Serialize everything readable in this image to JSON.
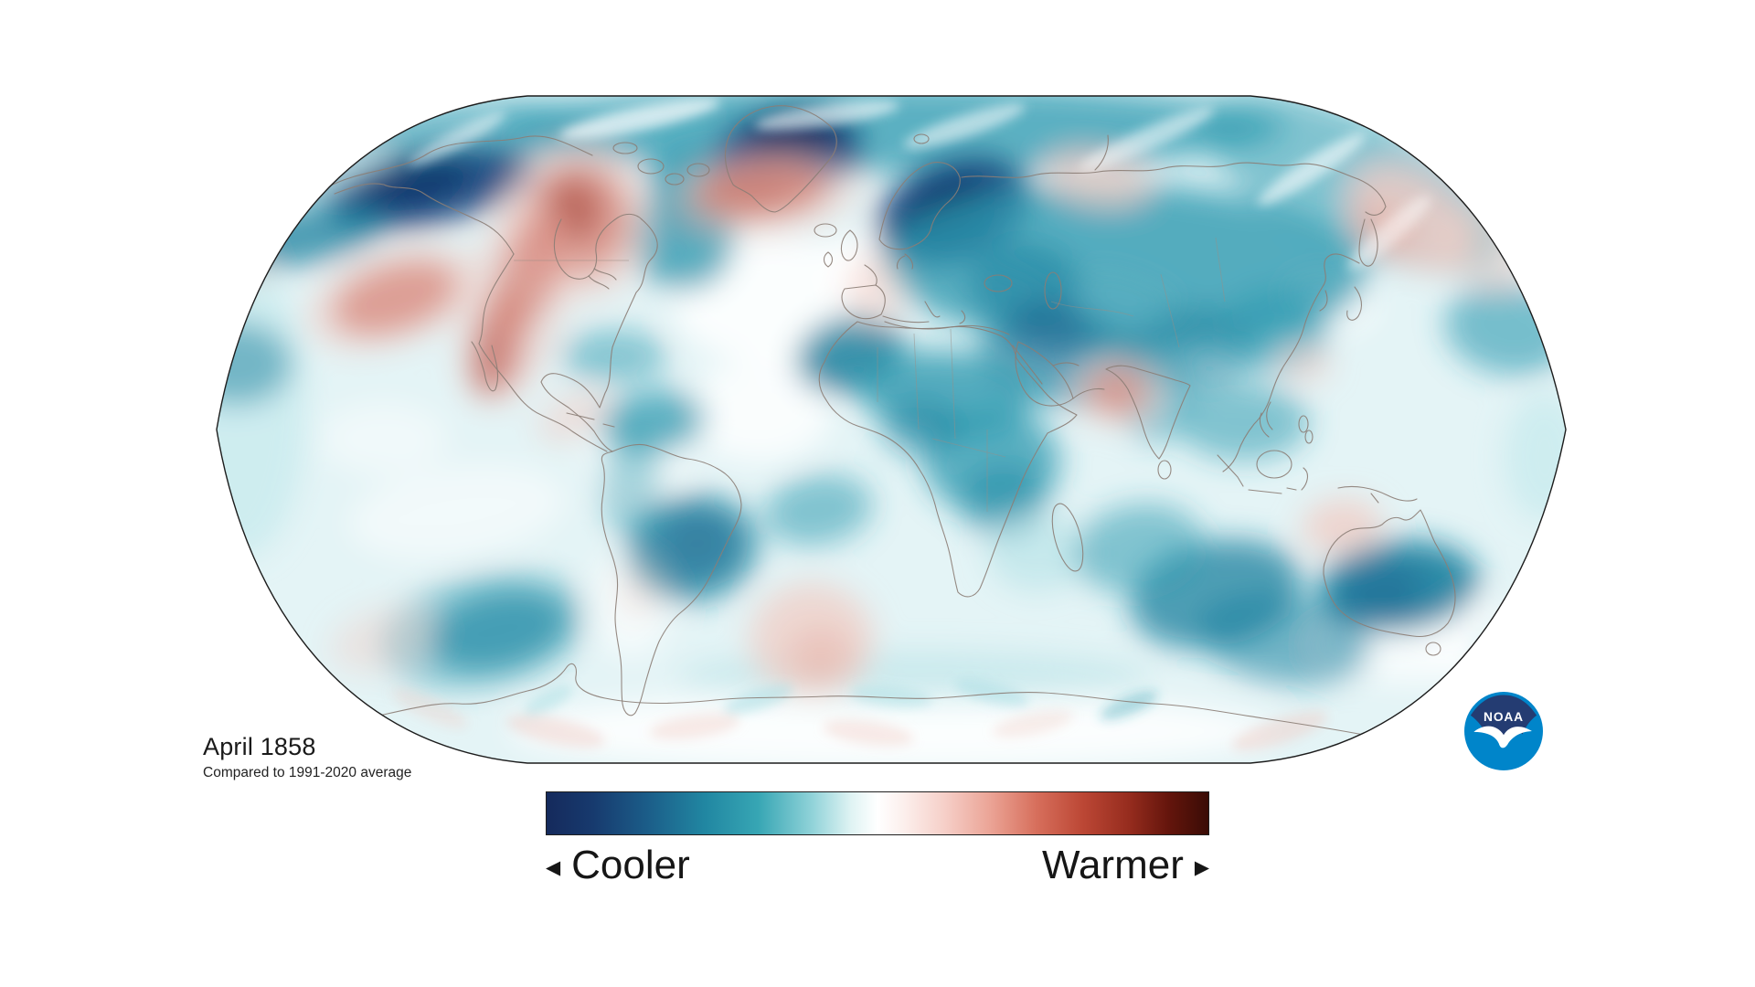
{
  "header": {
    "title": "April 1858",
    "subtitle": "Compared to 1991-2020 average"
  },
  "legend": {
    "cooler_label": "Cooler",
    "warmer_label": "Warmer",
    "cooler_arrow": "◀",
    "warmer_arrow": "▶"
  },
  "logo": {
    "text": "NOAA",
    "light_blue": "#0085ca",
    "navy": "#243c72"
  },
  "colorbar": {
    "meaning": "temperature anomaly, cooler (left) to warmer (right)",
    "stops": [
      [
        0,
        "#152a5c"
      ],
      [
        7,
        "#173a6e"
      ],
      [
        15,
        "#1b5c88"
      ],
      [
        24,
        "#2187a2"
      ],
      [
        32,
        "#37a6b4"
      ],
      [
        40,
        "#8fd2d8"
      ],
      [
        46,
        "#dff3f3"
      ],
      [
        50,
        "#ffffff"
      ],
      [
        54,
        "#fcefec"
      ],
      [
        60,
        "#f6d0c9"
      ],
      [
        67,
        "#eba496"
      ],
      [
        74,
        "#d76f5c"
      ],
      [
        81,
        "#bc4735"
      ],
      [
        88,
        "#962c1e"
      ],
      [
        94,
        "#64150c"
      ],
      [
        100,
        "#3a0c06"
      ]
    ]
  },
  "anomaly_regions": [
    {
      "region": "Greenland",
      "anomaly": "strong cool"
    },
    {
      "region": "Scandinavia / Baltic / NW Russia",
      "anomaly": "strong cool"
    },
    {
      "region": "Alaska / NW Canada",
      "anomaly": "strong cool"
    },
    {
      "region": "Central and East Asia",
      "anomaly": "cool"
    },
    {
      "region": "Africa (Sahara, Sahel, central)",
      "anomaly": "cool"
    },
    {
      "region": "Brazil / central South America",
      "anomaly": "cool"
    },
    {
      "region": "Australia interior and Indian Ocean",
      "anomaly": "cool"
    },
    {
      "region": "Central Canada / Hudson Bay",
      "anomaly": "warm"
    },
    {
      "region": "Western US / Mexico / Baja",
      "anomaly": "warm"
    },
    {
      "region": "North Atlantic south of Greenland / Iceland",
      "anomaly": "warm"
    },
    {
      "region": "NE Pacific / Bering / Kamchatka",
      "anomaly": "mild warm"
    },
    {
      "region": "Arabian Sea coast near India",
      "anomaly": "warm"
    },
    {
      "region": "Sea NW of Australia",
      "anomaly": "mild warm"
    },
    {
      "region": "South Atlantic",
      "anomaly": "mild warm"
    },
    {
      "region": "Antarctic fringe",
      "anomaly": "mixed mild"
    }
  ],
  "map": {
    "base_color": "#e4f4f6",
    "palette": {
      "deep": "#0a2c60",
      "navy": "#16457e",
      "teal": "#2e9ab0",
      "dteal": "#17809e",
      "lteal": "#aadde3",
      "pcyan": "#c8ebee",
      "white": "#ffffff",
      "pink": "#f0cdc6",
      "dpink": "#e5a79c",
      "red": "#bf4b3d",
      "dred": "#992c20"
    },
    "blobs": [
      [
        975,
        140,
        430,
        48,
        0,
        "teal",
        0.75,
        "f"
      ],
      [
        470,
        160,
        180,
        45,
        -8,
        "teal",
        0.6,
        "f"
      ],
      [
        1480,
        200,
        180,
        70,
        25,
        "teal",
        0.55,
        "f"
      ],
      [
        265,
        450,
        70,
        160,
        0,
        "pcyan",
        0.8,
        "f"
      ],
      [
        975,
        800,
        420,
        42,
        0,
        "white",
        0.85,
        "f"
      ],
      [
        855,
        330,
        120,
        70,
        0,
        "white",
        0.85,
        "f"
      ],
      [
        830,
        450,
        80,
        55,
        0,
        "white",
        0.8,
        "f"
      ],
      [
        700,
        500,
        60,
        40,
        0,
        "white",
        0.6,
        "f"
      ],
      [
        1120,
        340,
        85,
        38,
        28,
        "white",
        0.85,
        "f"
      ],
      [
        1235,
        330,
        65,
        26,
        20,
        "white",
        0.6,
        "f"
      ],
      [
        1530,
        715,
        95,
        32,
        5,
        "white",
        0.7,
        "f"
      ],
      [
        1605,
        690,
        55,
        35,
        0,
        "white",
        0.75,
        "f"
      ],
      [
        690,
        660,
        45,
        60,
        0,
        "white",
        0.6,
        "f"
      ],
      [
        500,
        560,
        120,
        50,
        -8,
        "white",
        0.5,
        "f"
      ],
      [
        420,
        480,
        70,
        40,
        0,
        "white",
        0.45,
        "f"
      ],
      [
        395,
        185,
        42,
        26,
        0,
        "white",
        0.5,
        "f"
      ],
      [
        1455,
        332,
        52,
        30,
        10,
        "white",
        0.7,
        "f"
      ],
      [
        965,
        292,
        60,
        42,
        0,
        "white",
        0.9,
        "f"
      ],
      [
        470,
        206,
        115,
        40,
        -12,
        "navy",
        0.9,
        "f"
      ],
      [
        452,
        200,
        62,
        26,
        -12,
        "deep",
        0.6,
        "f"
      ],
      [
        330,
        258,
        95,
        32,
        -10,
        "dteal",
        0.75,
        "f"
      ],
      [
        258,
        398,
        62,
        46,
        0,
        "dteal",
        0.5,
        "f"
      ],
      [
        757,
        196,
        48,
        36,
        0,
        "teal",
        0.85,
        "f"
      ],
      [
        748,
        262,
        56,
        56,
        0,
        "teal",
        0.8,
        "f"
      ],
      [
        762,
        232,
        32,
        26,
        0,
        "dteal",
        0.5,
        "f"
      ],
      [
        862,
        166,
        82,
        48,
        -10,
        "navy",
        0.95,
        "f"
      ],
      [
        868,
        154,
        50,
        30,
        -10,
        "deep",
        0.9,
        "f"
      ],
      [
        1042,
        232,
        88,
        56,
        -22,
        "navy",
        0.95,
        "f"
      ],
      [
        1038,
        236,
        52,
        34,
        -22,
        "deep",
        0.85,
        "f"
      ],
      [
        1230,
        292,
        265,
        92,
        2,
        "teal",
        0.8,
        "f"
      ],
      [
        1120,
        312,
        62,
        46,
        0,
        "dteal",
        0.55,
        "f"
      ],
      [
        1162,
        392,
        92,
        52,
        8,
        "dteal",
        0.65,
        "f"
      ],
      [
        1148,
        362,
        46,
        36,
        0,
        "navy",
        0.3,
        "f"
      ],
      [
        1305,
        382,
        72,
        46,
        -5,
        "dteal",
        0.5,
        "f"
      ],
      [
        1395,
        362,
        58,
        46,
        0,
        "teal",
        0.6,
        "f"
      ],
      [
        1360,
        462,
        72,
        42,
        0,
        "teal",
        0.55,
        "f"
      ],
      [
        1265,
        432,
        42,
        52,
        0,
        "teal",
        0.5,
        "f"
      ],
      [
        930,
        388,
        60,
        42,
        -15,
        "dteal",
        0.85,
        "f"
      ],
      [
        1035,
        432,
        95,
        48,
        5,
        "teal",
        0.8,
        "f"
      ],
      [
        1085,
        505,
        75,
        58,
        0,
        "teal",
        0.75,
        "f"
      ],
      [
        1008,
        468,
        42,
        32,
        0,
        "dteal",
        0.5,
        "f"
      ],
      [
        1098,
        548,
        48,
        42,
        0,
        "dteal",
        0.45,
        "f"
      ],
      [
        895,
        558,
        60,
        38,
        -10,
        "teal",
        0.55,
        "f"
      ],
      [
        1135,
        605,
        55,
        42,
        0,
        "lteal",
        0.5,
        "f"
      ],
      [
        715,
        462,
        58,
        34,
        -8,
        "teal",
        0.75,
        "f"
      ],
      [
        757,
        600,
        72,
        58,
        -10,
        "dteal",
        0.8,
        "f"
      ],
      [
        762,
        595,
        42,
        34,
        -10,
        "navy",
        0.25,
        "f"
      ],
      [
        690,
        525,
        32,
        62,
        5,
        "teal",
        0.4,
        "f"
      ],
      [
        545,
        690,
        78,
        42,
        -12,
        "dteal",
        0.7,
        "f"
      ],
      [
        530,
        690,
        115,
        62,
        -12,
        "teal",
        0.45,
        "f"
      ],
      [
        1330,
        650,
        95,
        58,
        -12,
        "dteal",
        0.75,
        "f"
      ],
      [
        1245,
        600,
        72,
        48,
        -10,
        "teal",
        0.55,
        "f"
      ],
      [
        1530,
        642,
        88,
        50,
        -6,
        "dteal",
        0.9,
        "f"
      ],
      [
        1512,
        648,
        48,
        32,
        -6,
        "navy",
        0.3,
        "f"
      ],
      [
        1405,
        700,
        95,
        48,
        8,
        "dteal",
        0.55,
        "f"
      ],
      [
        1660,
        715,
        45,
        32,
        0,
        "lteal",
        0.5,
        "f"
      ],
      [
        1650,
        360,
        70,
        50,
        10,
        "teal",
        0.6,
        "f"
      ],
      [
        1690,
        500,
        45,
        70,
        0,
        "pcyan",
        0.8,
        "f"
      ],
      [
        672,
        390,
        58,
        30,
        0,
        "teal",
        0.5,
        "f"
      ],
      [
        1000,
        740,
        260,
        28,
        0,
        "lteal",
        0.45,
        "f"
      ],
      [
        632,
        240,
        58,
        62,
        0,
        "red",
        0.85,
        "f"
      ],
      [
        630,
        242,
        85,
        88,
        0,
        "pink",
        0.55,
        "f"
      ],
      [
        627,
        230,
        32,
        36,
        0,
        "dred",
        0.45,
        "f"
      ],
      [
        578,
        300,
        32,
        68,
        20,
        "red",
        0.7,
        "f"
      ],
      [
        548,
        372,
        28,
        58,
        8,
        "red",
        0.75,
        "f"
      ],
      [
        533,
        394,
        17,
        40,
        5,
        "dred",
        0.75,
        "f"
      ],
      [
        562,
        332,
        58,
        115,
        15,
        "pink",
        0.45,
        "f"
      ],
      [
        432,
        326,
        70,
        36,
        -18,
        "red",
        0.85,
        "f"
      ],
      [
        430,
        326,
        100,
        52,
        -18,
        "pink",
        0.55,
        "f"
      ],
      [
        832,
        208,
        74,
        32,
        -6,
        "red",
        0.9,
        "f"
      ],
      [
        820,
        206,
        42,
        22,
        -6,
        "dred",
        0.55,
        "f"
      ],
      [
        836,
        212,
        105,
        48,
        -6,
        "pink",
        0.5,
        "f"
      ],
      [
        1545,
        240,
        75,
        48,
        35,
        "pink",
        0.85,
        "f"
      ],
      [
        1512,
        250,
        38,
        26,
        35,
        "dpink",
        0.5,
        "f"
      ],
      [
        1628,
        270,
        55,
        45,
        25,
        "pink",
        0.5,
        "f"
      ],
      [
        1200,
        196,
        58,
        28,
        10,
        "pink",
        0.75,
        "f"
      ],
      [
        1222,
        428,
        32,
        26,
        0,
        "red",
        0.8,
        "f"
      ],
      [
        1222,
        428,
        50,
        38,
        0,
        "pink",
        0.55,
        "f"
      ],
      [
        957,
        318,
        32,
        42,
        0,
        "pink",
        0.55,
        "f"
      ],
      [
        1468,
        576,
        44,
        30,
        -5,
        "pink",
        0.8,
        "f"
      ],
      [
        1428,
        398,
        28,
        20,
        0,
        "pink",
        0.6,
        "f"
      ],
      [
        888,
        700,
        68,
        62,
        0,
        "pink",
        0.75,
        "f"
      ],
      [
        898,
        718,
        36,
        32,
        0,
        "dpink",
        0.4,
        "f"
      ],
      [
        628,
        456,
        42,
        24,
        -25,
        "pink",
        0.55,
        "f"
      ],
      [
        420,
        700,
        60,
        34,
        -15,
        "pink",
        0.4,
        "f"
      ],
      [
        263,
        292,
        30,
        22,
        0,
        "pink",
        0.5,
        "f"
      ],
      [
        700,
        645,
        26,
        30,
        0,
        "pink",
        0.35,
        "f"
      ],
      [
        700,
        130,
        90,
        13,
        -12,
        "white",
        0.7,
        "s"
      ],
      [
        905,
        126,
        80,
        12,
        -8,
        "white",
        0.6,
        "s"
      ],
      [
        1055,
        138,
        70,
        12,
        -18,
        "white",
        0.55,
        "s"
      ],
      [
        1255,
        152,
        80,
        12,
        -24,
        "white",
        0.55,
        "s"
      ],
      [
        1435,
        185,
        70,
        12,
        -33,
        "white",
        0.6,
        "s"
      ],
      [
        1520,
        255,
        60,
        12,
        -42,
        "white",
        0.5,
        "s"
      ],
      [
        500,
        152,
        60,
        10,
        -28,
        "white",
        0.5,
        "s"
      ],
      [
        608,
        800,
        55,
        14,
        12,
        "pink",
        0.45,
        "s"
      ],
      [
        760,
        795,
        50,
        13,
        -8,
        "pink",
        0.4,
        "s"
      ],
      [
        950,
        802,
        50,
        13,
        8,
        "pink",
        0.4,
        "s"
      ],
      [
        1130,
        792,
        45,
        12,
        -12,
        "pink",
        0.35,
        "s"
      ],
      [
        1400,
        800,
        55,
        14,
        -18,
        "pink",
        0.45,
        "s"
      ],
      [
        470,
        775,
        45,
        12,
        25,
        "pink",
        0.35,
        "s"
      ],
      [
        830,
        765,
        40,
        11,
        -18,
        "lteal",
        0.55,
        "s"
      ],
      [
        1085,
        758,
        42,
        11,
        14,
        "lteal",
        0.55,
        "s"
      ],
      [
        1235,
        772,
        34,
        10,
        -22,
        "teal",
        0.35,
        "s"
      ],
      [
        600,
        766,
        30,
        10,
        -28,
        "lteal",
        0.5,
        "s"
      ],
      [
        975,
        762,
        45,
        11,
        6,
        "lteal",
        0.5,
        "s"
      ]
    ]
  }
}
